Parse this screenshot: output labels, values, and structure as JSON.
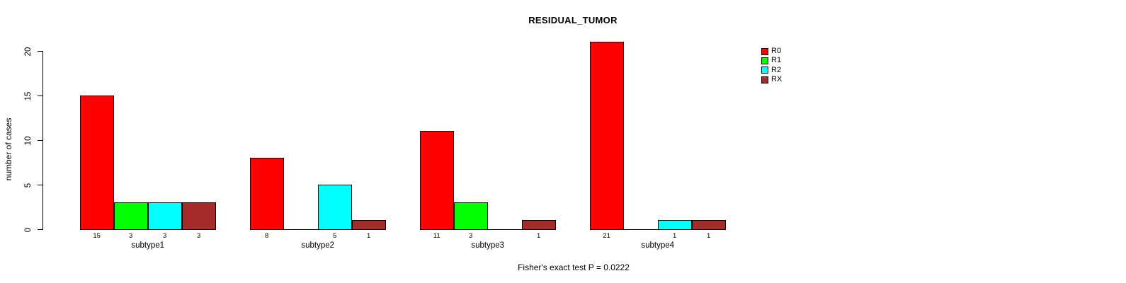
{
  "chart_data": {
    "type": "bar",
    "title": "RESIDUAL_TUMOR",
    "ylabel": "number of cases",
    "xlabel": "",
    "caption": "Fisher's exact test P = 0.0222",
    "categories": [
      "subtype1",
      "subtype2",
      "subtype3",
      "subtype4"
    ],
    "series": [
      {
        "name": "R0",
        "color": "#FF0000",
        "values": [
          15,
          8,
          11,
          21
        ]
      },
      {
        "name": "R1",
        "color": "#00FF00",
        "values": [
          3,
          0,
          3,
          0
        ]
      },
      {
        "name": "R2",
        "color": "#00FFFF",
        "values": [
          3,
          5,
          0,
          1
        ]
      },
      {
        "name": "RX",
        "color": "#A52A2A",
        "values": [
          3,
          1,
          1,
          1
        ]
      }
    ],
    "yticks": [
      0,
      5,
      10,
      15,
      20
    ],
    "ylim": [
      0,
      20
    ],
    "grid": false,
    "legend_position": "top-right",
    "bar_value_labels": true,
    "zero_bars_drawn_as_flat_line": true
  }
}
